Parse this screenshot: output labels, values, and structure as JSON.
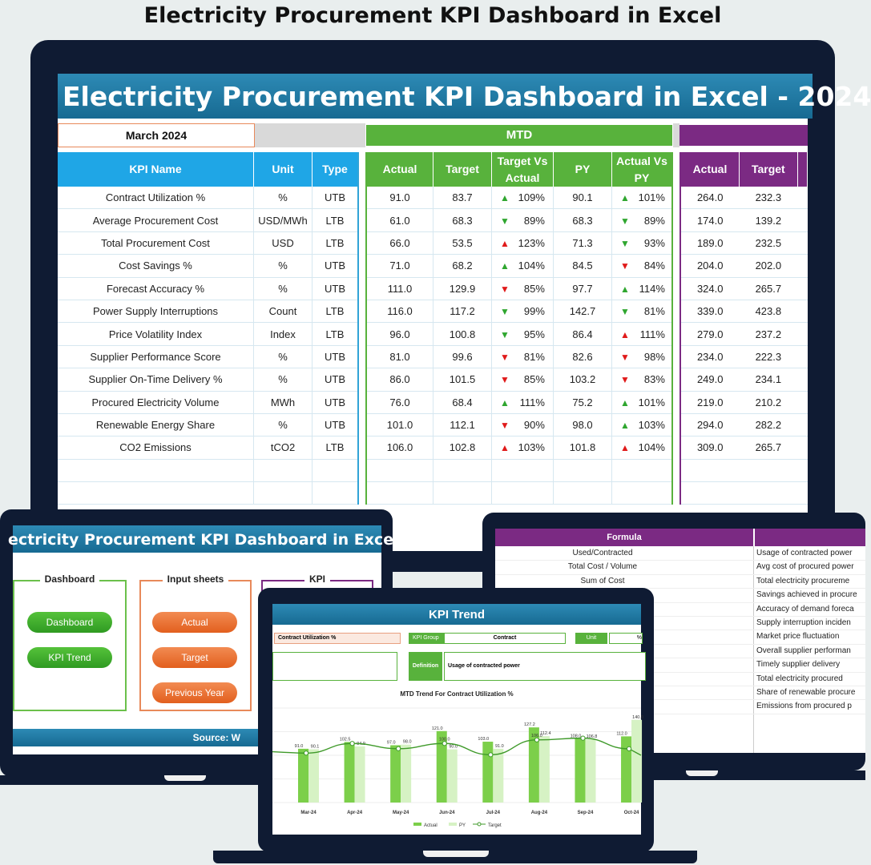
{
  "heading": "Electricity Procurement KPI Dashboard in Excel",
  "main": {
    "banner": "Electricity Procurement KPI Dashboard in Excel - 2024",
    "month": "March 2024",
    "mtd_label": "MTD",
    "headers_left": [
      "KPI Name",
      "Unit",
      "Type"
    ],
    "headers_mtd": [
      "Actual",
      "Target",
      "Target Vs Actual",
      "PY",
      "Actual Vs PY"
    ],
    "headers_ytd": [
      "Actual",
      "Target"
    ],
    "rows": [
      {
        "name": "Contract Utilization %",
        "unit": "%",
        "type": "UTB",
        "actual": "91.0",
        "target": "83.7",
        "tva_dir": "up",
        "tva": "109%",
        "py": "90.1",
        "avp_dir": "up",
        "avp": "101%",
        "ytd_actual": "264.0",
        "ytd_target": "232.3"
      },
      {
        "name": "Average Procurement Cost",
        "unit": "USD/MWh",
        "type": "LTB",
        "actual": "61.0",
        "target": "68.3",
        "tva_dir": "down-good",
        "tva": "89%",
        "py": "68.3",
        "avp_dir": "down-good",
        "avp": "89%",
        "ytd_actual": "174.0",
        "ytd_target": "139.2"
      },
      {
        "name": "Total Procurement Cost",
        "unit": "USD",
        "type": "LTB",
        "actual": "66.0",
        "target": "53.5",
        "tva_dir": "up-bad",
        "tva": "123%",
        "py": "71.3",
        "avp_dir": "down-good",
        "avp": "93%",
        "ytd_actual": "189.0",
        "ytd_target": "232.5"
      },
      {
        "name": "Cost Savings %",
        "unit": "%",
        "type": "UTB",
        "actual": "71.0",
        "target": "68.2",
        "tva_dir": "up",
        "tva": "104%",
        "py": "84.5",
        "avp_dir": "down-bad",
        "avp": "84%",
        "ytd_actual": "204.0",
        "ytd_target": "202.0"
      },
      {
        "name": "Forecast Accuracy %",
        "unit": "%",
        "type": "UTB",
        "actual": "111.0",
        "target": "129.9",
        "tva_dir": "down-bad",
        "tva": "85%",
        "py": "97.7",
        "avp_dir": "up",
        "avp": "114%",
        "ytd_actual": "324.0",
        "ytd_target": "265.7"
      },
      {
        "name": "Power Supply Interruptions",
        "unit": "Count",
        "type": "LTB",
        "actual": "116.0",
        "target": "117.2",
        "tva_dir": "down-good",
        "tva": "99%",
        "py": "142.7",
        "avp_dir": "down-good",
        "avp": "81%",
        "ytd_actual": "339.0",
        "ytd_target": "423.8"
      },
      {
        "name": "Price Volatility Index",
        "unit": "Index",
        "type": "LTB",
        "actual": "96.0",
        "target": "100.8",
        "tva_dir": "down-good",
        "tva": "95%",
        "py": "86.4",
        "avp_dir": "up-bad",
        "avp": "111%",
        "ytd_actual": "279.0",
        "ytd_target": "237.2"
      },
      {
        "name": "Supplier Performance Score",
        "unit": "%",
        "type": "UTB",
        "actual": "81.0",
        "target": "99.6",
        "tva_dir": "down-bad",
        "tva": "81%",
        "py": "82.6",
        "avp_dir": "down-bad",
        "avp": "98%",
        "ytd_actual": "234.0",
        "ytd_target": "222.3"
      },
      {
        "name": "Supplier On-Time Delivery %",
        "unit": "%",
        "type": "UTB",
        "actual": "86.0",
        "target": "101.5",
        "tva_dir": "down-bad",
        "tva": "85%",
        "py": "103.2",
        "avp_dir": "down-bad",
        "avp": "83%",
        "ytd_actual": "249.0",
        "ytd_target": "234.1"
      },
      {
        "name": "Procured Electricity Volume",
        "unit": "MWh",
        "type": "UTB",
        "actual": "76.0",
        "target": "68.4",
        "tva_dir": "up",
        "tva": "111%",
        "py": "75.2",
        "avp_dir": "up",
        "avp": "101%",
        "ytd_actual": "219.0",
        "ytd_target": "210.2"
      },
      {
        "name": "Renewable Energy Share",
        "unit": "%",
        "type": "UTB",
        "actual": "101.0",
        "target": "112.1",
        "tva_dir": "down-bad",
        "tva": "90%",
        "py": "98.0",
        "avp_dir": "up",
        "avp": "103%",
        "ytd_actual": "294.0",
        "ytd_target": "282.2"
      },
      {
        "name": "CO2 Emissions",
        "unit": "tCO2",
        "type": "LTB",
        "actual": "106.0",
        "target": "102.8",
        "tva_dir": "up-bad",
        "tva": "103%",
        "py": "101.8",
        "avp_dir": "up-bad",
        "avp": "104%",
        "ytd_actual": "309.0",
        "ytd_target": "265.7"
      }
    ]
  },
  "nav_screen": {
    "banner": "ectricity Procurement KPI Dashboard in Exce",
    "groups": {
      "dashboard": {
        "title": "Dashboard",
        "buttons": [
          "Dashboard",
          "KPI Trend"
        ]
      },
      "input": {
        "title": "Input sheets",
        "buttons": [
          "Actual",
          "Target",
          "Previous Year"
        ]
      },
      "kpi": {
        "title": "KPI"
      }
    },
    "footer": "Source: W"
  },
  "formula_screen": {
    "header": "Formula",
    "rows": [
      {
        "formula": "Used/Contracted",
        "desc": "Usage of contracted power"
      },
      {
        "formula": "Total Cost / Volume",
        "desc": "Avg cost of procured power"
      },
      {
        "formula": "Sum of Cost",
        "desc": "Total electricity procureme"
      },
      {
        "formula": "",
        "desc": "Savings achieved in procure"
      },
      {
        "formula": "",
        "desc": "Accuracy of demand foreca"
      },
      {
        "formula": "",
        "desc": "Supply interruption inciden"
      },
      {
        "formula": "",
        "desc": "Market price fluctuation"
      },
      {
        "formula": "",
        "desc": "Overall supplier performan"
      },
      {
        "formula": "",
        "desc": "Timely supplier delivery"
      },
      {
        "formula": "",
        "desc": "Total electricity procured"
      },
      {
        "formula": "",
        "desc": "Share of renewable procure"
      },
      {
        "formula": "",
        "desc": "Emissions from procured p"
      }
    ]
  },
  "trend_screen": {
    "banner": "KPI Trend",
    "kpi_select": "Contract Utilization %",
    "kpi_group_label": "KPI Group",
    "kpi_group_value": "Contract",
    "unit_label": "Unit",
    "unit_value": "%",
    "definition_label": "Definition",
    "definition_value": "Usage of contracted power",
    "chart_title": "MTD Trend For Contract Utilization %",
    "legend": [
      "Actual",
      "PY",
      "Target"
    ],
    "colors": {
      "actual": "#7ccf4a",
      "py": "#d6f2c4",
      "target": "#3f9a2a"
    }
  },
  "chart_data": {
    "type": "bar",
    "title": "MTD Trend For Contract Utilization %",
    "categories": [
      "Mar-24",
      "Apr-24",
      "May-24",
      "Jun-24",
      "Jul-24",
      "Aug-24",
      "Sep-24",
      "Oct-24"
    ],
    "series": [
      {
        "name": "Actual",
        "values": [
          91.0,
          102.5,
          97.0,
          121.0,
          103.0,
          127.2,
          108.0,
          112.0
        ]
      },
      {
        "name": "PY",
        "values": [
          90.1,
          94.9,
          98.0,
          90.0,
          91.0,
          112.4,
          106.8,
          140.0
        ]
      },
      {
        "name": "Target",
        "values": [
          83.7,
          100.0,
          91.2,
          100.0,
          80.9,
          106.0,
          109.0,
          91.0
        ]
      }
    ],
    "data_labels": {
      "Actual": [
        "91.0",
        "102.5",
        "97.0",
        "121.0",
        "103.0",
        "127.2",
        "108.0",
        "112.0"
      ],
      "PY": [
        "90.1",
        "94.9",
        "98.0",
        "90.0",
        "91.0",
        "112.4",
        "106.8",
        "140.0"
      ],
      "Target": [
        "",
        "",
        "",
        "100.0",
        "",
        "106.0",
        "",
        ""
      ]
    }
  }
}
